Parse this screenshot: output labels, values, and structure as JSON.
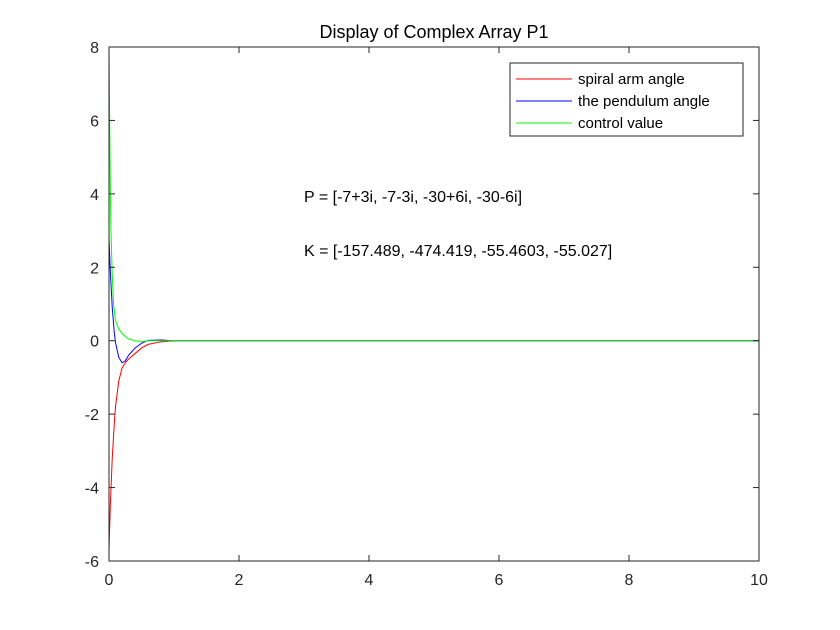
{
  "chart_data": {
    "type": "line",
    "title": "Display of Complex Array P1",
    "xlabel": "",
    "ylabel": "",
    "xlim": [
      0,
      10
    ],
    "ylim": [
      -6,
      8
    ],
    "xticks": [
      0,
      2,
      4,
      6,
      8,
      10
    ],
    "yticks": [
      -6,
      -4,
      -2,
      0,
      2,
      4,
      6,
      8
    ],
    "grid": false,
    "legend_position": "top-right",
    "series": [
      {
        "name": "spiral arm angle",
        "color": "#ff0000",
        "x": [
          0,
          0.02,
          0.05,
          0.08,
          0.1,
          0.15,
          0.2,
          0.25,
          0.3,
          0.4,
          0.5,
          0.6,
          0.8,
          1.0,
          1.5,
          2,
          4,
          6,
          8,
          10
        ],
        "y": [
          -5.7,
          -4.5,
          -3.2,
          -2.3,
          -1.8,
          -1.1,
          -0.75,
          -0.6,
          -0.5,
          -0.35,
          -0.2,
          -0.1,
          -0.03,
          0,
          0,
          0,
          0,
          0,
          0,
          0
        ]
      },
      {
        "name": "the pendulum angle",
        "color": "#0000ff",
        "x": [
          0,
          0.02,
          0.05,
          0.08,
          0.1,
          0.15,
          0.2,
          0.25,
          0.3,
          0.4,
          0.5,
          0.6,
          0.8,
          1.0,
          1.5,
          2,
          4,
          6,
          8,
          10
        ],
        "y": [
          2.8,
          1.9,
          0.9,
          0.25,
          -0.05,
          -0.45,
          -0.6,
          -0.55,
          -0.4,
          -0.2,
          -0.07,
          0.01,
          0.02,
          0,
          0,
          0,
          0,
          0,
          0,
          0
        ]
      },
      {
        "name": "control value",
        "color": "#00ff00",
        "x": [
          0,
          0.01,
          0.02,
          0.03,
          0.05,
          0.07,
          0.1,
          0.15,
          0.2,
          0.25,
          0.3,
          0.4,
          0.5,
          0.6,
          0.8,
          1.0,
          1.5,
          2,
          4,
          6,
          8,
          10
        ],
        "y": [
          8.0,
          6.0,
          4.2,
          3.0,
          1.8,
          1.0,
          0.55,
          0.32,
          0.2,
          0.12,
          0.05,
          0.0,
          -0.02,
          0.0,
          0,
          0,
          0,
          0,
          0,
          0,
          0,
          0
        ]
      }
    ],
    "annotations": [
      {
        "text": "P = [-7+3i, -7-3i, -30+6i, -30-6i]",
        "x": 3.0,
        "y": 3.78
      },
      {
        "text": "K = [-157.489, -474.419, -55.4603, -55.027]",
        "x": 3.0,
        "y": 2.31
      }
    ]
  }
}
